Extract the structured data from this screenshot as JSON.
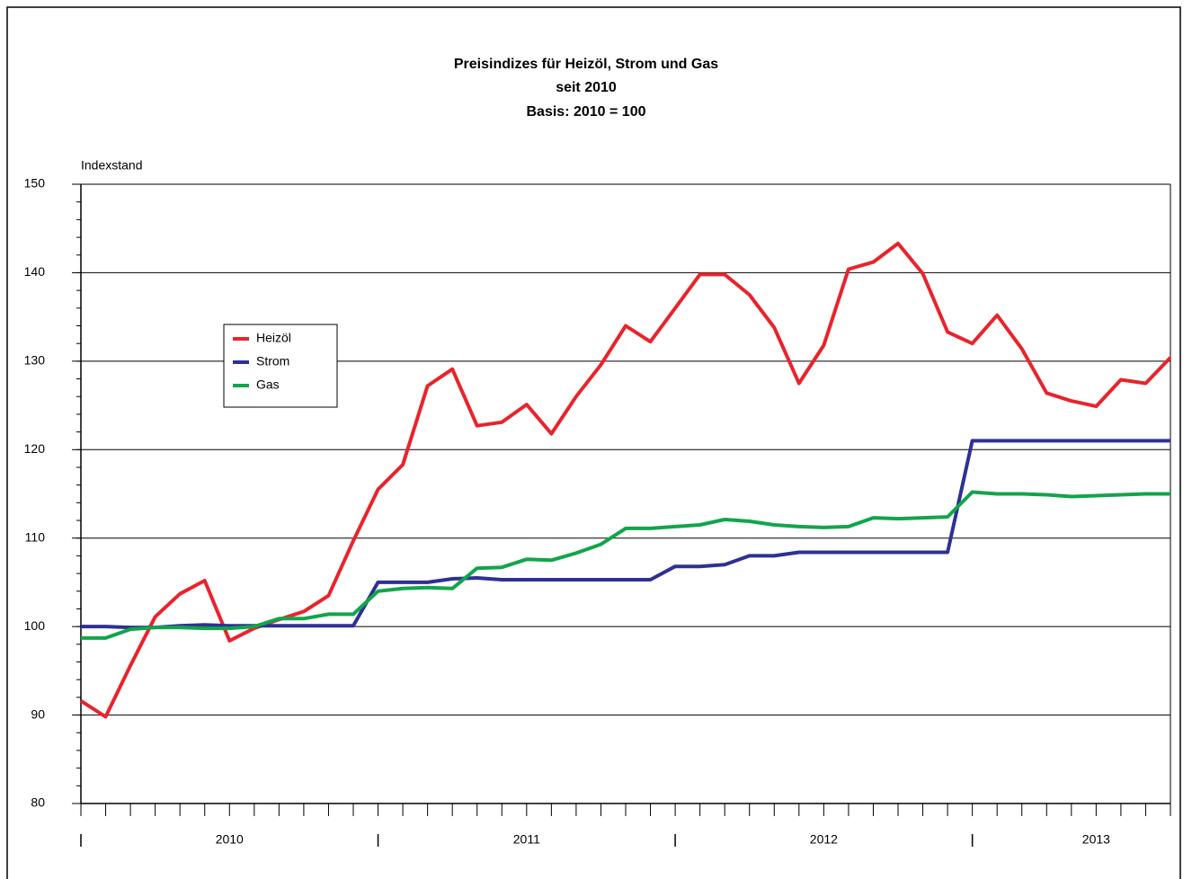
{
  "chart_data": {
    "type": "line",
    "title": [
      "Preisindizes für Heizöl, Strom und Gas",
      "seit 2010",
      "Basis: 2010 = 100"
    ],
    "ylabel": "Indexstand",
    "categories": [
      null,
      null,
      null,
      null,
      null,
      null,
      "2010",
      null,
      null,
      null,
      null,
      null,
      null,
      null,
      null,
      null,
      null,
      null,
      "2011",
      null,
      null,
      null,
      null,
      null,
      null,
      null,
      null,
      null,
      null,
      null,
      "2012",
      null,
      null,
      null,
      null,
      null,
      null,
      null,
      null,
      null,
      null,
      "2013",
      null,
      null,
      null
    ],
    "series": [
      {
        "name": "Heizöl",
        "color": "#e8242c",
        "values": [
          91.6,
          89.8,
          95.6,
          101.1,
          103.7,
          105.2,
          98.4,
          99.8,
          100.8,
          101.7,
          103.5,
          109.7,
          115.5,
          118.3,
          127.2,
          129.1,
          122.7,
          123.1,
          125.1,
          121.8,
          126.0,
          129.6,
          134.0,
          132.2,
          136.0,
          139.8,
          139.8,
          137.5,
          133.8,
          127.5,
          131.8,
          140.4,
          141.2,
          143.3,
          139.9,
          133.3,
          132.0,
          135.2,
          131.4,
          126.4,
          125.5,
          124.9,
          127.9,
          127.5,
          130.4
        ]
      },
      {
        "name": "Strom",
        "color": "#2e3192",
        "values": [
          100.0,
          100.0,
          99.9,
          99.9,
          100.1,
          100.2,
          100.1,
          100.1,
          100.1,
          100.1,
          100.1,
          100.1,
          105.0,
          105.0,
          105.0,
          105.4,
          105.5,
          105.3,
          105.3,
          105.3,
          105.3,
          105.3,
          105.3,
          105.3,
          106.8,
          106.8,
          107.0,
          108.0,
          108.0,
          108.4,
          108.4,
          108.4,
          108.4,
          108.4,
          108.4,
          108.4,
          121.0,
          121.0,
          121.0,
          121.0,
          121.0,
          121.0,
          121.0,
          121.0,
          121.0
        ]
      },
      {
        "name": "Gas",
        "color": "#12a54a",
        "values": [
          98.7,
          98.7,
          99.7,
          99.9,
          99.9,
          99.8,
          99.8,
          100.0,
          100.9,
          100.9,
          101.4,
          101.4,
          104.0,
          104.3,
          104.4,
          104.3,
          106.6,
          106.7,
          107.6,
          107.5,
          108.3,
          109.3,
          111.1,
          111.1,
          111.3,
          111.5,
          112.1,
          111.9,
          111.5,
          111.3,
          111.2,
          111.3,
          112.3,
          112.2,
          112.3,
          112.4,
          115.2,
          115.0,
          115.0,
          114.9,
          114.7,
          114.8,
          114.9,
          115.0,
          115.0
        ]
      }
    ],
    "ylim": [
      80,
      150
    ],
    "yticks": [
      80,
      90,
      100,
      110,
      120,
      130,
      140,
      150
    ],
    "grid": true,
    "legend": "center-left"
  }
}
